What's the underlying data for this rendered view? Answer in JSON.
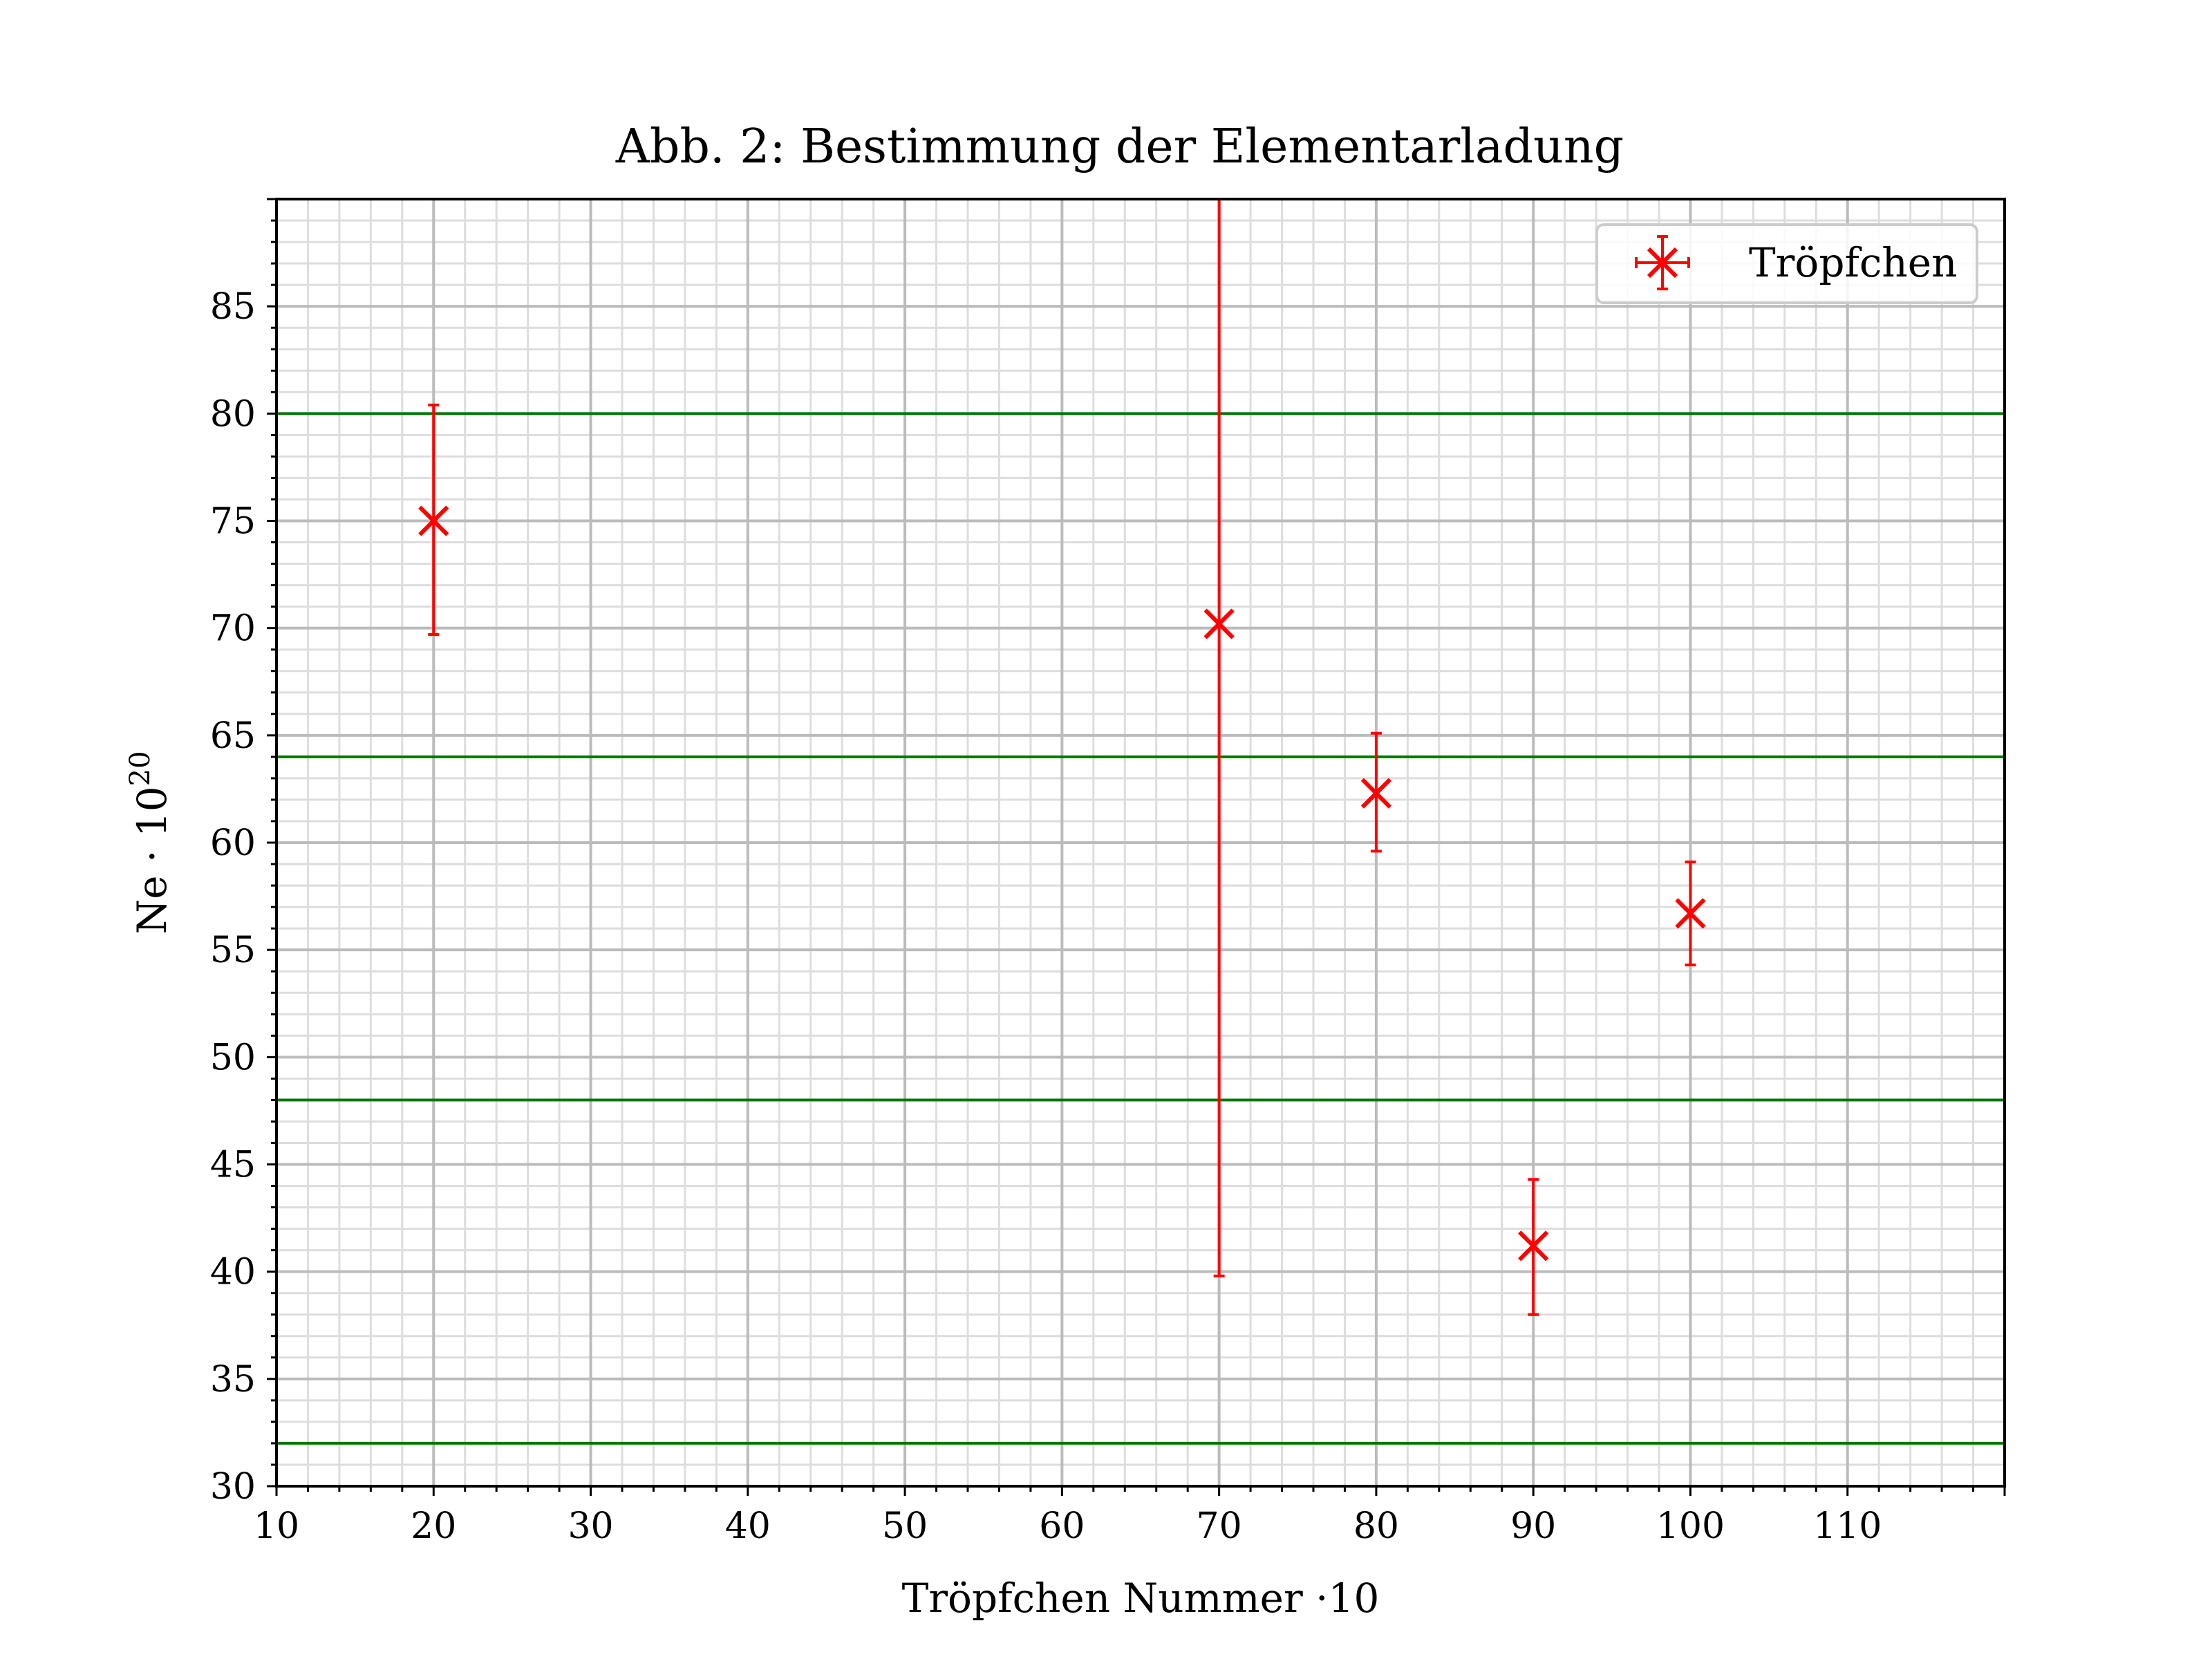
{
  "chart_data": {
    "type": "scatter",
    "title": "Abb. 2: Bestimmung der Elementarladung",
    "xlabel": "Tröpfchen Nummer ·10",
    "ylabel": "Ne · 10",
    "ylabel_exponent": "20",
    "xlim": [
      10,
      120
    ],
    "ylim": [
      30,
      90
    ],
    "xticks": [
      10,
      20,
      30,
      40,
      50,
      60,
      70,
      80,
      90,
      100,
      110
    ],
    "yticks": [
      30,
      35,
      40,
      45,
      50,
      55,
      60,
      65,
      70,
      75,
      80,
      85
    ],
    "grid": true,
    "legend_position": "top-right",
    "series": [
      {
        "name": "Tröpfchen",
        "color": "#ff0000",
        "marker": "x",
        "points": [
          {
            "x": 20,
            "y": 75.0,
            "err_low": 69.7,
            "err_high": 80.4
          },
          {
            "x": 70,
            "y": 70.2,
            "err_low": 39.8,
            "err_high": 90.0
          },
          {
            "x": 80,
            "y": 62.3,
            "err_low": 59.6,
            "err_high": 65.1
          },
          {
            "x": 90,
            "y": 41.2,
            "err_low": 38.0,
            "err_high": 44.3
          },
          {
            "x": 100,
            "y": 56.7,
            "err_low": 54.3,
            "err_high": 59.1
          }
        ]
      }
    ],
    "reference_lines": {
      "color": "#007700",
      "y": [
        32,
        48,
        64,
        80
      ]
    }
  }
}
